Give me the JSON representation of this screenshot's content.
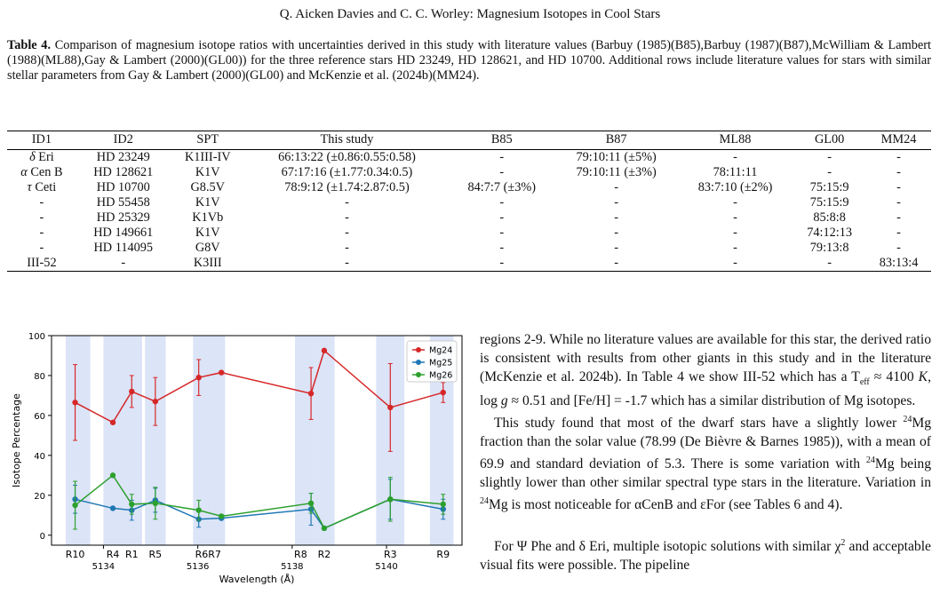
{
  "header": "Q. Aicken Davies  and C. C. Worley: Magnesium Isotopes in Cool Stars",
  "caption": {
    "label": "Table 4.",
    "text": " Comparison of magnesium isotope ratios with uncertainties derived in this study with literature values (Barbuy (1985)(B85),Barbuy (1987)(B87),McWilliam & Lambert (1988)(ML88),Gay & Lambert (2000)(GL00)) for the three reference stars HD 23249, HD 128621, and HD 10700. Additional rows include literature values for stars with similar stellar parameters from Gay & Lambert (2000)(GL00) and McKenzie et al. (2024b)(MM24)."
  },
  "table": {
    "headers": [
      "ID1",
      "ID2",
      "SPT",
      "This study",
      "B85",
      "B87",
      "ML88",
      "GL00",
      "MM24"
    ],
    "rows": [
      [
        "δ Eri",
        "HD 23249",
        "K1III-IV",
        "66:13:22 (±0.86:0.55:0.58)",
        "-",
        "79:10:11 (±5%)",
        "-",
        "-",
        "-"
      ],
      [
        "α Cen B",
        "HD 128621",
        "K1V",
        "67:17:16 (±1.77:0.34:0.5)",
        "-",
        "79:10:11 (±3%)",
        "78:11:11",
        "-",
        "-"
      ],
      [
        "τ Ceti",
        "HD 10700",
        "G8.5V",
        "78:9:12 (±1.74:2.87:0.5)",
        "84:7:7 (±3%)",
        "-",
        "83:7:10 (±2%)",
        "75:15:9",
        "-"
      ],
      [
        "-",
        "HD 55458",
        "K1V",
        "-",
        "-",
        "-",
        "-",
        "75:15:9",
        "-"
      ],
      [
        "-",
        "HD 25329",
        "K1Vb",
        "-",
        "-",
        "-",
        "-",
        "85:8:8",
        "-"
      ],
      [
        "-",
        "HD 149661",
        "K1V",
        "-",
        "-",
        "-",
        "-",
        "74:12:13",
        "-"
      ],
      [
        "-",
        "HD 114095",
        "G8V",
        "-",
        "-",
        "-",
        "-",
        "79:13:8",
        "-"
      ],
      [
        "III-52",
        "-",
        "K3III",
        "-",
        "-",
        "-",
        "-",
        "-",
        "83:13:4"
      ]
    ]
  },
  "chart_data": {
    "type": "line",
    "xlabel": "Wavelength (Å)",
    "ylabel": "Isotope Percentage",
    "xlim": [
      5132.9,
      5141.6
    ],
    "ylim": [
      -5,
      100
    ],
    "xticks": [
      5134,
      5136,
      5138,
      5140
    ],
    "yticks": [
      0,
      20,
      40,
      60,
      80,
      100
    ],
    "grid": false,
    "legend": "top-right",
    "regions": [
      {
        "label": "R10",
        "x0": 5133.2,
        "x1": 5133.72,
        "lx": 5133.4
      },
      {
        "label": "R4",
        "x0": 5134.0,
        "x1": 5134.5,
        "lx": 5134.2
      },
      {
        "label": "R1",
        "x0": 5134.5,
        "x1": 5134.82,
        "lx": 5134.6
      },
      {
        "label": "R5",
        "x0": 5134.88,
        "x1": 5135.32,
        "lx": 5135.1
      },
      {
        "label": "R6R7",
        "x0": 5135.9,
        "x1": 5136.58,
        "lx": 5136.22
      },
      {
        "label": "R8",
        "x0": 5138.06,
        "x1": 5138.48,
        "lx": 5138.18
      },
      {
        "label": "R2",
        "x0": 5138.48,
        "x1": 5138.9,
        "lx": 5138.68
      },
      {
        "label": "R3",
        "x0": 5139.78,
        "x1": 5140.38,
        "lx": 5140.08
      },
      {
        "label": "R9",
        "x0": 5140.92,
        "x1": 5141.42,
        "lx": 5141.2
      }
    ],
    "x": [
      5133.4,
      5134.2,
      5134.6,
      5135.1,
      5136.02,
      5136.5,
      5138.4,
      5138.68,
      5140.08,
      5141.2
    ],
    "series": [
      {
        "name": "Mg24",
        "color": "#d62728",
        "values": [
          66.5,
          56.5,
          72,
          67,
          79,
          81.5,
          71,
          92.5,
          64,
          71.5
        ],
        "err": [
          19,
          0,
          8,
          12,
          9,
          0,
          13,
          0,
          22,
          5
        ]
      },
      {
        "name": "Mg25",
        "color": "#1f77b4",
        "values": [
          18,
          13.5,
          12.5,
          17.5,
          8,
          8.5,
          13,
          3.5,
          18,
          13
        ],
        "err": [
          7,
          0,
          5,
          6,
          4,
          0,
          8,
          0,
          10,
          5
        ]
      },
      {
        "name": "Mg26",
        "color": "#2ca02c",
        "values": [
          15,
          30,
          15.5,
          16,
          12.5,
          9.5,
          16,
          3.5,
          18,
          15.5
        ],
        "err": [
          12,
          0,
          5,
          8,
          5,
          0,
          5,
          0,
          11,
          5
        ]
      }
    ]
  },
  "body": {
    "p1": "regions 2-9. While no literature values are available for this star, the derived ratio is consistent with results from other giants in this study and in the literature (McKenzie et al. 2024b). In Table 4 we show III-52 which has a T<span class=\"sub\">eff</span> ≈ 4100 <i>K</i>, log <i>g</i> ≈ 0.51 and [Fe/H] = -1.7 which has a similar distribution of Mg isotopes.",
    "p2": "This study found that most of the dwarf stars have a slightly lower <span class=\"sup\">24</span>Mg fraction than the solar value (78.99 (De Bièvre & Barnes 1985)), with a mean of 69.9 and standard deviation of 5.3. There is some variation with <span class=\"sup\">24</span>Mg being slightly lower than other similar spectral type stars in the literature. Variation in <span class=\"sup\">24</span>Mg is most noticeable for αCenB and εFor (see Tables 6 and 4).",
    "p3": "For Ψ Phe and δ Eri, multiple isotopic solutions with similar χ<span class=\"sup\">2</span> and acceptable visual fits were possible. The pipeline"
  }
}
